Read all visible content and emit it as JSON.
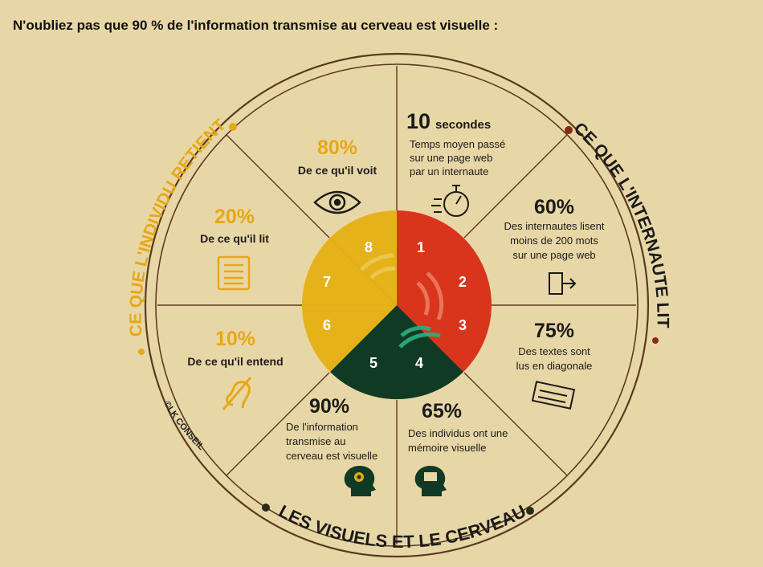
{
  "headline": "N'oubliez pas que 90 % de l'information transmise au cerveau est visuelle :",
  "arc_titles": {
    "left": "CE QUE L'INDIVIDU RETIENT",
    "right": "CE QUE L'INTERNAUTE LIT",
    "bottom": "LES VISUELS ET LE CERVEAU"
  },
  "copyright": "©LK CONSEIL",
  "colors": {
    "background": "#e8d7a6",
    "yellow": "#e6b21a",
    "red": "#d8351c",
    "green": "#113a24",
    "ring": "#5a3a20",
    "accent": "#e6a817"
  },
  "center_numbers": [
    "1",
    "2",
    "3",
    "4",
    "5",
    "6",
    "7",
    "8"
  ],
  "segments": {
    "seconds": {
      "value": "10",
      "unit": "secondes",
      "line1": "Temps moyen passé",
      "line2": "sur une page web",
      "line3": "par un internaute",
      "icon": "stopwatch-icon"
    },
    "words": {
      "value": "60%",
      "line1": "Des internautes lisent",
      "line2": "moins de 200 mots",
      "line3": "sur une page web",
      "icon": "exit-door-icon"
    },
    "diagonal": {
      "value": "75%",
      "line1": "Des textes sont",
      "line2": "lus en diagonale",
      "icon": "newspaper-icon"
    },
    "memory": {
      "value": "65%",
      "line1": "Des individus ont une",
      "line2": "mémoire visuelle",
      "icon": "head-picture-icon"
    },
    "brain": {
      "value": "90%",
      "line1": "De l'information",
      "line2": "transmise au",
      "line3": "cerveau est visuelle",
      "icon": "head-gears-icon"
    },
    "hear": {
      "value": "10%",
      "line1": "De ce qu'il entend",
      "icon": "ear-icon"
    },
    "read": {
      "value": "20%",
      "line1": "De ce qu'il lit",
      "icon": "document-icon"
    },
    "see": {
      "value": "80%",
      "line1": "De ce qu'il voit",
      "icon": "eye-icon"
    }
  }
}
